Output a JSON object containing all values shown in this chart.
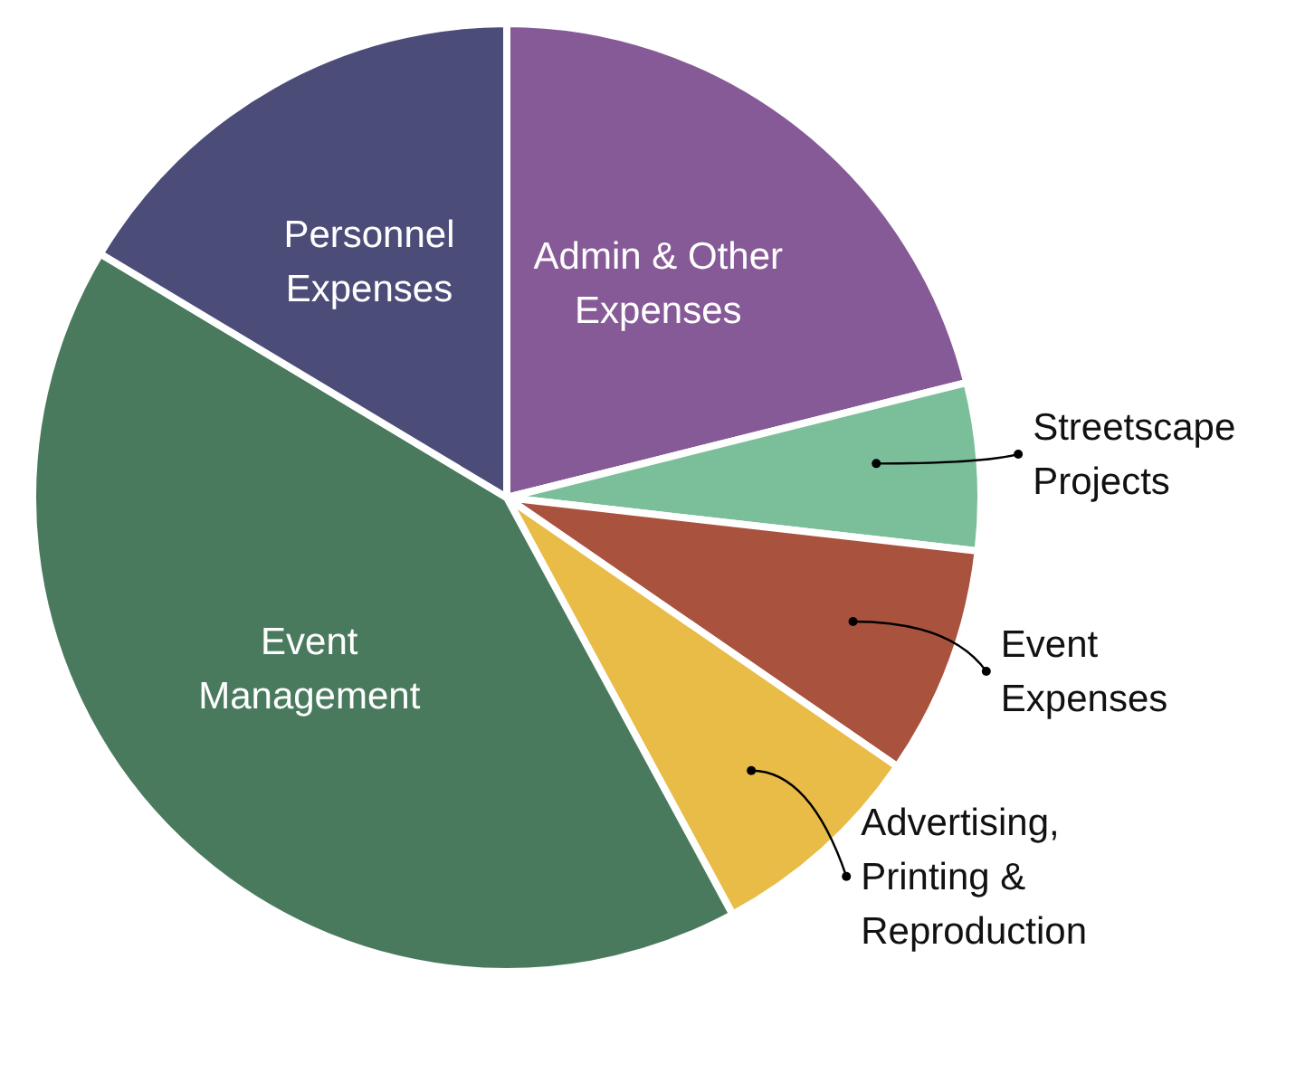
{
  "chart_data": {
    "type": "pie",
    "categories": [
      "Admin & Other Expenses",
      "Streetscape Projects",
      "Event Expenses",
      "Advertising, Printing & Reproduction",
      "Event Management",
      "Personnel Expenses"
    ],
    "values": [
      21.1,
      5.7,
      7.8,
      7.5,
      41.5,
      16.4
    ],
    "colors": [
      "#865a96",
      "#7bbf9a",
      "#a9523e",
      "#e9bc48",
      "#4a7a5e",
      "#4b4c78"
    ],
    "legend": false
  }
}
